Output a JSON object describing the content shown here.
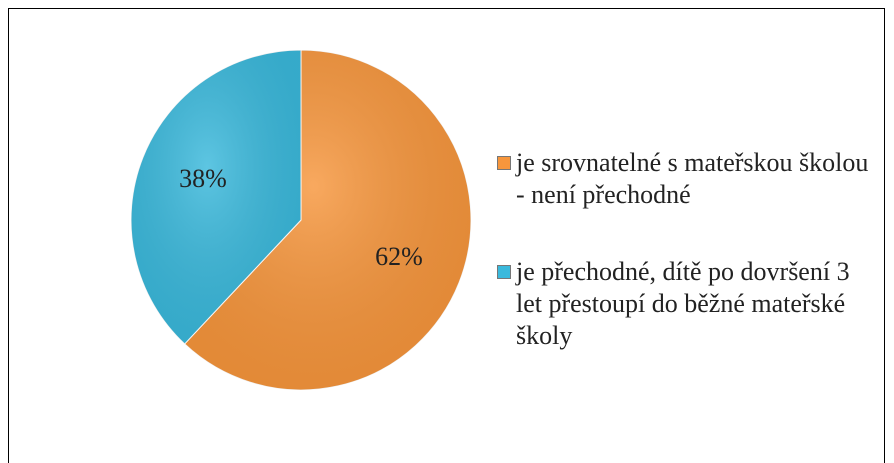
{
  "chart_data": {
    "type": "pie",
    "categories": [
      "je srovnatelné s mateřskou školou - není přechodné",
      "je přechodné, dítě po dovršení 3 let přestoupí do běžné mateřské školy"
    ],
    "values": [
      62,
      38
    ],
    "value_labels": [
      "62%",
      "38%"
    ],
    "colors": [
      "#f7963c",
      "#3ab9dc"
    ]
  }
}
